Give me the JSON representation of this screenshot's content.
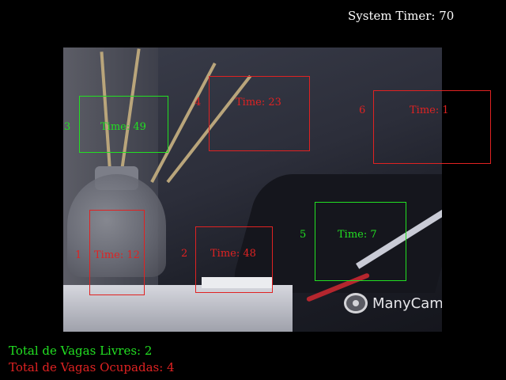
{
  "system_timer": "System Timer: 70",
  "camera_feed": {
    "watermark": "ManyCam.com",
    "watermark_icon": "webcam-icon"
  },
  "spots": [
    {
      "id": "1",
      "time": "Time: 12",
      "status": "occupied",
      "color": "#e02222"
    },
    {
      "id": "2",
      "time": "Time: 48",
      "status": "occupied",
      "color": "#e02222"
    },
    {
      "id": "3",
      "time": "Time: 49",
      "status": "free",
      "color": "#22e022"
    },
    {
      "id": "4",
      "time": "Time: 23",
      "status": "occupied",
      "color": "#e02222"
    },
    {
      "id": "5",
      "time": "Time: 7",
      "status": "free",
      "color": "#22e022"
    },
    {
      "id": "6",
      "time": "Time: 1",
      "status": "occupied",
      "color": "#e02222"
    }
  ],
  "summary": {
    "free": "Total de Vagas Livres: 2",
    "occupied": "Total de Vagas Ocupadas: 4"
  },
  "colors": {
    "free": "#22e022",
    "occupied": "#e02222",
    "background": "#000000"
  }
}
